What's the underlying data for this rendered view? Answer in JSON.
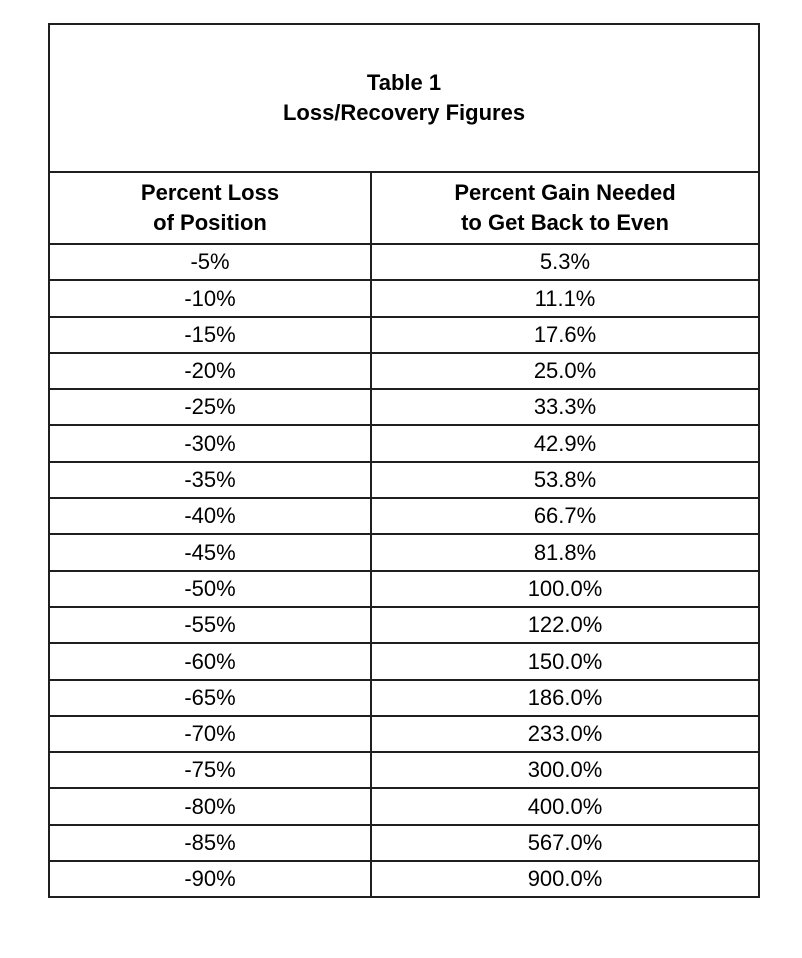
{
  "page": {
    "background_color": "#ffffff",
    "text_color": "#000000",
    "border_color": "#1f1f1f"
  },
  "table": {
    "title_line1": "Table 1",
    "title_line2": "Loss/Recovery Figures",
    "columns": [
      {
        "line1": "Percent Loss",
        "line2": "of Position"
      },
      {
        "line1": "Percent Gain Needed",
        "line2": "to Get Back to Even"
      }
    ],
    "rows": [
      {
        "loss": "-5%",
        "gain": "5.3%"
      },
      {
        "loss": "-10%",
        "gain": "11.1%"
      },
      {
        "loss": "-15%",
        "gain": "17.6%"
      },
      {
        "loss": "-20%",
        "gain": "25.0%"
      },
      {
        "loss": "-25%",
        "gain": "33.3%"
      },
      {
        "loss": "-30%",
        "gain": "42.9%"
      },
      {
        "loss": "-35%",
        "gain": "53.8%"
      },
      {
        "loss": "-40%",
        "gain": "66.7%"
      },
      {
        "loss": "-45%",
        "gain": "81.8%"
      },
      {
        "loss": "-50%",
        "gain": "100.0%"
      },
      {
        "loss": "-55%",
        "gain": "122.0%"
      },
      {
        "loss": "-60%",
        "gain": "150.0%"
      },
      {
        "loss": "-65%",
        "gain": "186.0%"
      },
      {
        "loss": "-70%",
        "gain": "233.0%"
      },
      {
        "loss": "-75%",
        "gain": "300.0%"
      },
      {
        "loss": "-80%",
        "gain": "400.0%"
      },
      {
        "loss": "-85%",
        "gain": "567.0%"
      },
      {
        "loss": "-90%",
        "gain": "900.0%"
      }
    ]
  },
  "chart_data": {
    "type": "table",
    "title": "Table 1 Loss/Recovery Figures",
    "columns": [
      "Percent Loss of Position",
      "Percent Gain Needed to Get Back to Even"
    ],
    "loss_percent": [
      -5,
      -10,
      -15,
      -20,
      -25,
      -30,
      -35,
      -40,
      -45,
      -50,
      -55,
      -60,
      -65,
      -70,
      -75,
      -80,
      -85,
      -90
    ],
    "gain_needed_percent": [
      5.3,
      11.1,
      17.6,
      25.0,
      33.3,
      42.9,
      53.8,
      66.7,
      81.8,
      100.0,
      122.0,
      150.0,
      186.0,
      233.0,
      300.0,
      400.0,
      567.0,
      900.0
    ],
    "layout": "two-column table, title cell spanning both columns, all text centered, single black gridlines"
  }
}
